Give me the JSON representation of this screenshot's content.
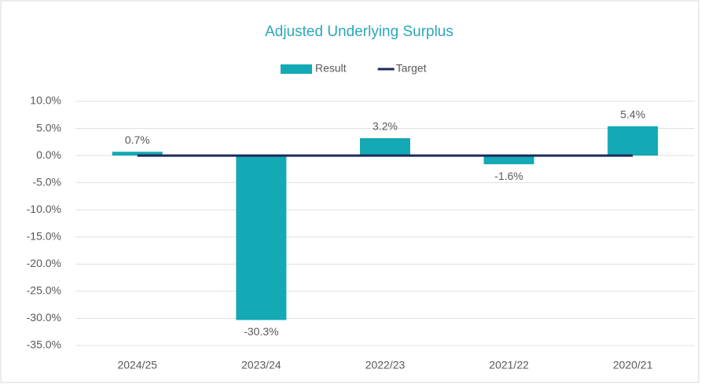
{
  "chart_data": {
    "type": "bar",
    "title": "Adjusted Underlying Surplus",
    "categories": [
      "2024/25",
      "2023/24",
      "2022/23",
      "2021/22",
      "2020/21"
    ],
    "series": [
      {
        "name": "Result",
        "type": "bar",
        "color": "#13a9b5",
        "values": [
          0.7,
          -30.3,
          3.2,
          -1.6,
          5.4
        ],
        "value_labels": [
          "0.7%",
          "-30.3%",
          "3.2%",
          "-1.6%",
          "5.4%"
        ]
      },
      {
        "name": "Target",
        "type": "line",
        "color": "#1f2a5c",
        "values": [
          0,
          0,
          0,
          0,
          0
        ]
      }
    ],
    "ylim": [
      -35,
      10
    ],
    "yticks": [
      {
        "value": -35,
        "label": "-35.0%"
      },
      {
        "value": -30,
        "label": "-30.0%"
      },
      {
        "value": -25,
        "label": "-25.0%"
      },
      {
        "value": -20,
        "label": "-20.0%"
      },
      {
        "value": -15,
        "label": "-15.0%"
      },
      {
        "value": -10,
        "label": "-10.0%"
      },
      {
        "value": -5,
        "label": "-5.0%"
      },
      {
        "value": 0,
        "label": "0.0%"
      },
      {
        "value": 5,
        "label": "5.0%"
      },
      {
        "value": 10,
        "label": "10.0%"
      }
    ],
    "grid": true,
    "legend": "top"
  }
}
